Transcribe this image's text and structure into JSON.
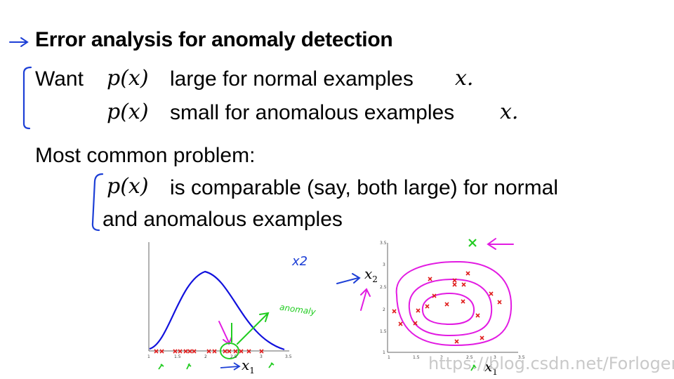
{
  "slide": {
    "title": "Error analysis for anomaly detection",
    "line1_prefix": "Want",
    "line1_math": "p(x)",
    "line1_text": "large for normal examples",
    "line1_var": "x.",
    "line2_math": "p(x)",
    "line2_text": "small for anomalous examples",
    "line2_var": "x.",
    "problem_heading": "Most common problem:",
    "problem_math": "p(x)",
    "problem_text": "is comparable (say, both large) for normal",
    "problem_text_2": "and anomalous examples"
  },
  "annotations": {
    "x2_handwritten": "x2",
    "anomaly_handwritten": "anomaly"
  },
  "left_plot": {
    "xlabel": "x",
    "xlabel_sub": "1",
    "xticks": [
      "1",
      "1.5",
      "2",
      "2.5",
      "3",
      "3.5"
    ]
  },
  "right_plot": {
    "xlabel": "x",
    "xlabel_sub": "1",
    "ylabel": "x",
    "ylabel_sub": "2",
    "yticks": [
      "3.5",
      "3",
      "2.5",
      "2",
      "1.5",
      "1"
    ],
    "xticks": [
      "1",
      "1.5",
      "2",
      "2.5",
      "3",
      "3.5"
    ]
  },
  "watermark": "https://blog.csdn.net/Forlogen",
  "colors": {
    "ink_blue": "#1d3fd6",
    "ink_magenta": "#e21be2",
    "ink_green": "#22cc22",
    "marker_red": "#e02020",
    "curve_blue": "#1111dd"
  }
}
